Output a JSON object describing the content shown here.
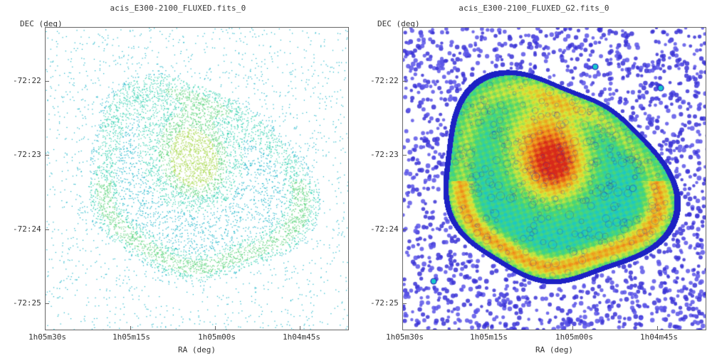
{
  "panels": [
    {
      "title": "acis_E300-2100_FLUXED.fits_0",
      "ylabel": "DEC (deg)",
      "xlabel": "RA (deg)",
      "yticks": [
        "-72:22",
        "-72:23",
        "-72:24",
        "-72:25"
      ],
      "xticks": [
        "1h05m30s",
        "1h05m15s",
        "1h05m00s",
        "1h04m45s"
      ],
      "style": "raw-events",
      "colors": [
        "#13b3c8",
        "#2ccfae",
        "#5bd37a",
        "#a6d84a"
      ]
    },
    {
      "title": "acis_E300-2100_FLUXED_G2.fits_0",
      "ylabel": "DEC (deg)",
      "xlabel": "RA (deg)",
      "yticks": [
        "-72:22",
        "-72:23",
        "-72:24",
        "-72:25"
      ],
      "xticks": [
        "1h05m30s",
        "1h05m15s",
        "1h05m00s",
        "1h04m45s"
      ],
      "style": "smoothed",
      "colors": [
        "#1a14c0",
        "#2a7fe0",
        "#19c8c8",
        "#52d86a",
        "#d8e83a",
        "#f09b1c",
        "#d8281a"
      ]
    }
  ]
}
